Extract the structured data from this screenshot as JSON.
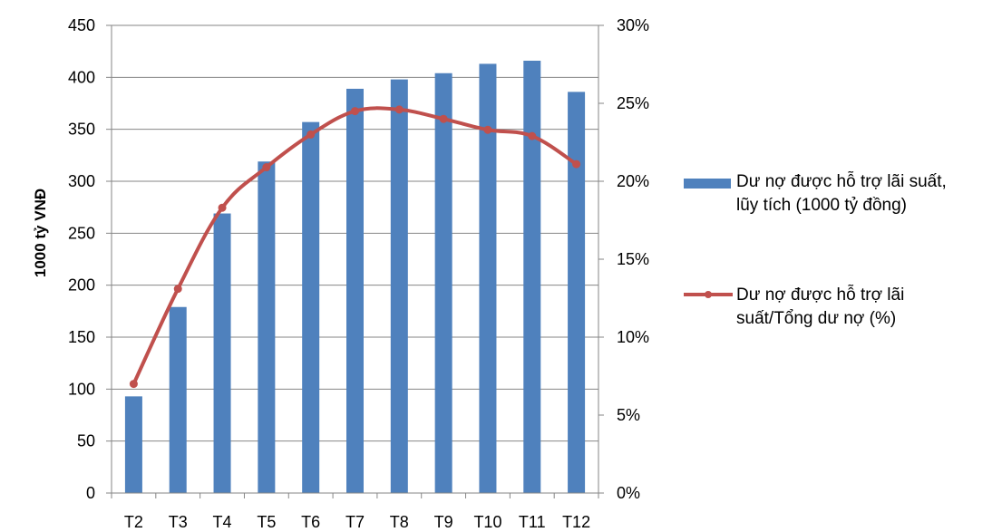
{
  "chart_data": {
    "type": "bar",
    "categories": [
      "T2",
      "T3",
      "T4",
      "T5",
      "T6",
      "T7",
      "T8",
      "T9",
      "T10",
      "T11",
      "T12"
    ],
    "series": [
      {
        "name": "Dư nợ được hỗ trợ lãi suất, lũy tích (1000 tỷ đồng)",
        "type": "bar",
        "axis": "left",
        "values": [
          93,
          179,
          269,
          319,
          357,
          389,
          398,
          404,
          413,
          416,
          386
        ]
      },
      {
        "name": "Dư nợ được hỗ trợ lãi suất/Tổng dư nợ (%)",
        "type": "line",
        "axis": "right",
        "values": [
          7.0,
          13.1,
          18.3,
          20.9,
          23.0,
          24.5,
          24.6,
          24.0,
          23.3,
          22.9,
          21.1
        ]
      }
    ],
    "ylabel": "1000 tỷ VNĐ",
    "ylim": [
      0,
      450
    ],
    "yticks": [
      "0",
      "50",
      "100",
      "150",
      "200",
      "250",
      "300",
      "350",
      "400",
      "450"
    ],
    "y2lim": [
      0,
      30
    ],
    "y2ticks": [
      "0%",
      "5%",
      "10%",
      "15%",
      "20%",
      "25%",
      "30%"
    ],
    "grid": true,
    "legend_position": "right",
    "colors": {
      "bar": "#4f81bd",
      "line": "#c0504d",
      "grid": "#868686"
    }
  },
  "legend": {
    "bar_line1": "Dư nợ được hỗ trợ lãi suất,",
    "bar_line2": "lũy tích (1000 tỷ đồng)",
    "line_line1": "Dư nợ được hỗ trợ lãi",
    "line_line2": "suất/Tổng dư nợ (%)"
  }
}
